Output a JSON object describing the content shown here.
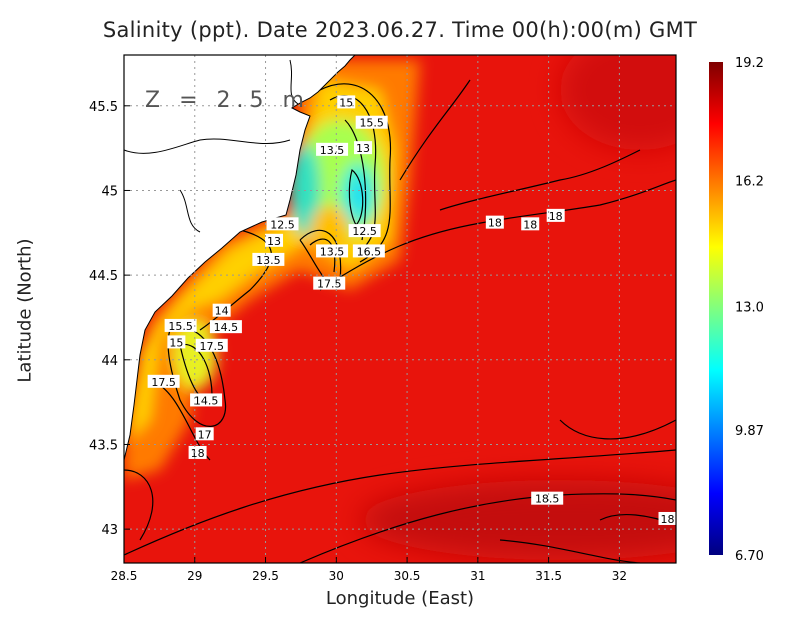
{
  "chart_data": {
    "type": "heatmap",
    "title": "Salinity (ppt). Date 2023.06.27. Time 00(h):00(m) GMT",
    "xlabel": "Longitude (East)",
    "ylabel": "Latitude (North)",
    "annotation": "Z = 2.5 m",
    "xlim": [
      28.5,
      32.4
    ],
    "ylim": [
      42.8,
      45.8
    ],
    "xticks": [
      "28.5",
      "29",
      "29.5",
      "30",
      "30.5",
      "31",
      "31.5",
      "32"
    ],
    "xtick_values": [
      28.5,
      29,
      29.5,
      30,
      30.5,
      31,
      31.5,
      32
    ],
    "yticks": [
      "43",
      "43.5",
      "44",
      "44.5",
      "45",
      "45.5"
    ],
    "ytick_values": [
      43,
      43.5,
      44,
      44.5,
      45,
      45.5
    ],
    "grid": true,
    "colorbar": {
      "range": [
        6.7,
        19.2
      ],
      "ticks": [
        "19.2",
        "16.2",
        "13.0",
        "9.87",
        "6.70"
      ],
      "tick_values": [
        19.2,
        16.2,
        13.0,
        9.87,
        6.7
      ],
      "colormap": "jet",
      "placement": "right"
    },
    "contour_labels": [
      {
        "text": "15",
        "lon": 30.07,
        "lat": 45.52
      },
      {
        "text": "15.5",
        "lon": 30.25,
        "lat": 45.4
      },
      {
        "text": "13.5",
        "lon": 29.97,
        "lat": 45.24
      },
      {
        "text": "13",
        "lon": 30.09,
        "lat": 45.25
      },
      {
        "text": "12.5",
        "lon": 29.62,
        "lat": 44.8
      },
      {
        "text": "13",
        "lon": 29.56,
        "lat": 44.75
      },
      {
        "text": "13.5",
        "lon": 29.52,
        "lat": 44.59
      },
      {
        "text": "12.5",
        "lon": 30.2,
        "lat": 44.76
      },
      {
        "text": "16.5",
        "lon": 30.23,
        "lat": 44.64
      },
      {
        "text": "13.5",
        "lon": 29.97,
        "lat": 44.64
      },
      {
        "text": "17.5",
        "lon": 29.95,
        "lat": 44.45
      },
      {
        "text": "14",
        "lon": 29.19,
        "lat": 44.29
      },
      {
        "text": "14.5",
        "lon": 29.22,
        "lat": 44.24
      },
      {
        "text": "15.5",
        "lon": 28.9,
        "lat": 44.2
      },
      {
        "text": "15",
        "lon": 28.87,
        "lat": 44.15
      },
      {
        "text": "17.5",
        "lon": 29.12,
        "lat": 44.13
      },
      {
        "text": "17.5",
        "lon": 28.78,
        "lat": 43.87
      },
      {
        "text": "14.5",
        "lon": 29.08,
        "lat": 43.76
      },
      {
        "text": "17",
        "lon": 29.07,
        "lat": 43.56
      },
      {
        "text": "18",
        "lon": 29.02,
        "lat": 43.45
      },
      {
        "text": "18",
        "lon": 31.12,
        "lat": 44.81
      },
      {
        "text": "18",
        "lon": 31.37,
        "lat": 44.8
      },
      {
        "text": "18",
        "lon": 31.55,
        "lat": 44.85
      },
      {
        "text": "18.5",
        "lon": 31.49,
        "lat": 43.18
      },
      {
        "text": "18",
        "lon": 32.34,
        "lat": 43.06
      }
    ],
    "colors": {
      "sea_background": "#e8140c",
      "land": "#ffffff",
      "contour": "#000000"
    }
  }
}
